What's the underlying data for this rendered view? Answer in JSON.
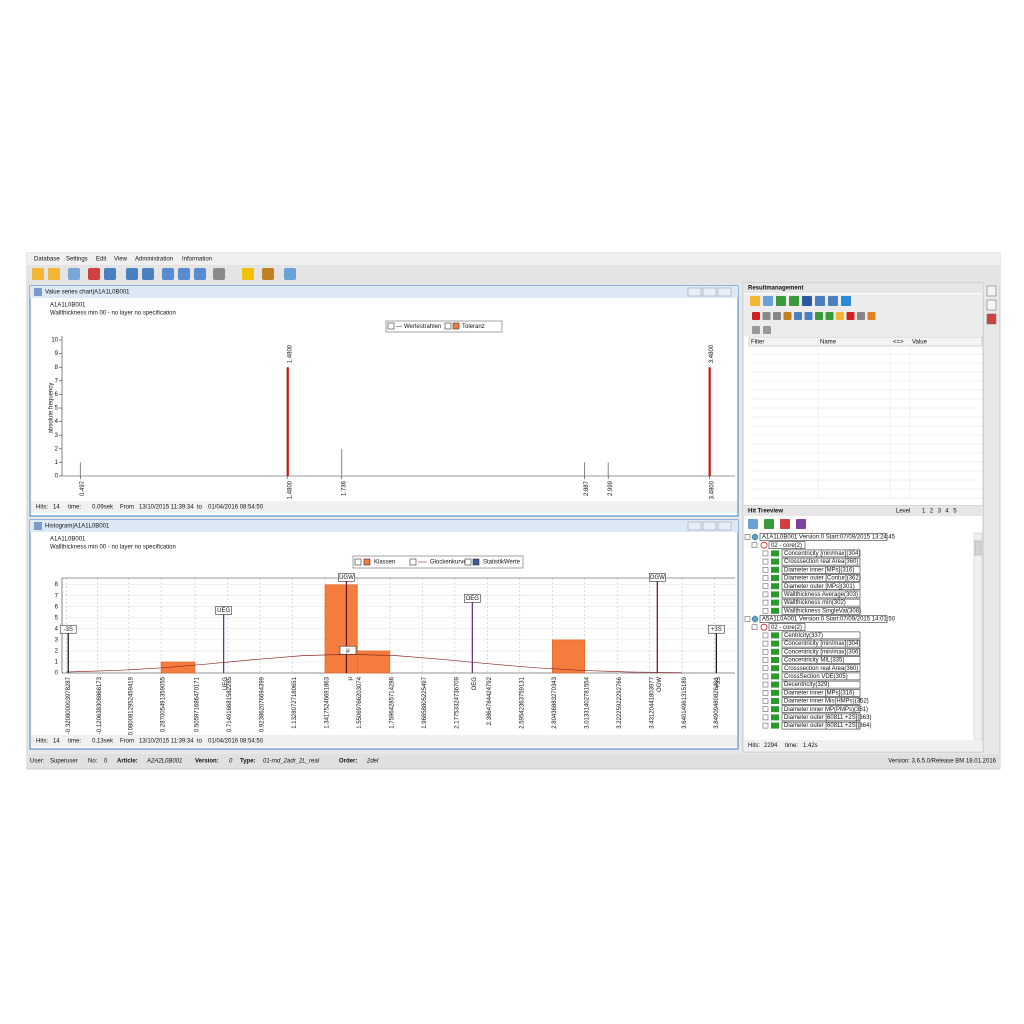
{
  "menu": [
    "Database",
    "Settings",
    "Edit",
    "View",
    "Administration",
    "Information"
  ],
  "value_chart": {
    "window_title": "Value series chart|A1A1L0B001",
    "header": "A1A1L0B001",
    "subtitle": "Wallthickness min 00 - no layer no specification",
    "legend": [
      "Wertestrahlen",
      "Toleranz"
    ],
    "y_label": "absolute frequency",
    "ylim": [
      0,
      10
    ],
    "yticks": [
      0,
      1,
      2,
      3,
      4,
      5,
      6,
      7,
      8,
      9,
      10
    ],
    "xlim": [
      0.41,
      3.6
    ],
    "xticks": [
      0.497,
      {
        "value": 1.48,
        "label": "1.4800"
      },
      1.736,
      2.887,
      2.999,
      {
        "value": 3.48,
        "label": "3.4800"
      }
    ],
    "series": [
      {
        "name": "Wertestrahlen",
        "color": "#777777",
        "x": [
          0.497,
          1.736,
          2.887,
          2.999
        ],
        "values": [
          1,
          2,
          1,
          1
        ]
      },
      {
        "name": "Toleranz",
        "color": "#cc1111",
        "x": [
          1.48,
          3.48
        ],
        "values": [
          8,
          8
        ],
        "value_labels": [
          "1.4800",
          "3.4800"
        ]
      }
    ],
    "status": {
      "hits_label": "Hits:",
      "hits": 14,
      "time_label": "time:",
      "time": "0.09sek",
      "from_label": "From",
      "from": "13/10/2015 11:39:34",
      "to_label": "to",
      "to": "01/04/2016 08:54:50"
    }
  },
  "histogram": {
    "window_title": "Histogram|A1A1L0B001",
    "header": "A1A1L0B001",
    "subtitle": "Wallthickness min 00 - no layer no specification",
    "legend": [
      "Klassen",
      "Glockenkurve",
      "StatistikWerte"
    ],
    "color": "#f47c3c",
    "ylim": [
      0,
      8.6
    ],
    "yticks": [
      0,
      1,
      2,
      3,
      4,
      5,
      6,
      7,
      8
    ],
    "xlim": [
      -0.35,
      3.98
    ],
    "bins": [
      -0.320800003978287,
      -0.120638308866173,
      0.0800812952459419,
      0.287005491359055,
      0.505971686470171,
      0.714916681582285,
      0.923862076694399,
      1.13280727180651,
      1.34175246691863,
      1.55069766203074,
      1.75964285714286,
      1.96858805225497,
      2.17753324736709,
      2.3864784424792,
      2.59542363759131,
      2.80436883270343,
      3.01331402781554,
      3.22225922292766,
      3.43120441803977,
      3.64014961315189,
      3.84909480826401
    ],
    "counts": [
      0,
      0,
      0,
      1,
      0,
      0,
      0,
      0,
      8,
      2,
      0,
      0,
      0,
      0,
      0,
      3,
      0,
      0,
      0,
      0
    ],
    "curve": {
      "x": [
        -0.32,
        0,
        0.3,
        0.6,
        0.9,
        1.2,
        1.5,
        1.8,
        2.1,
        2.4,
        2.7,
        3.0,
        3.3,
        3.64
      ],
      "values": [
        0.09,
        0.23,
        0.47,
        0.83,
        1.23,
        1.57,
        1.7,
        1.57,
        1.23,
        0.83,
        0.47,
        0.23,
        0.09,
        0.03
      ]
    },
    "markers": [
      {
        "label": "-3S",
        "value": -0.31
      },
      {
        "label": "UEG",
        "value": 0.69
      },
      {
        "label": "UGW",
        "value": 1.48
      },
      {
        "label": "μ",
        "value": 1.49
      },
      {
        "label": "OEG",
        "value": 2.29
      },
      {
        "label": "OGW",
        "value": 3.48
      },
      {
        "label": "+3S",
        "value": 3.86
      }
    ],
    "status": {
      "hits_label": "Hits:",
      "hits": 14,
      "time_label": "time:",
      "time": "0.13sek",
      "from_label": "From",
      "from": "13/10/2015 11:39:34",
      "to_label": "to",
      "to": "01/04/2016 08:54:50"
    }
  },
  "result_management": {
    "title": "Resultmanagement",
    "columns": [
      "Filter",
      "Name",
      "<=>",
      "Value"
    ]
  },
  "tree_view": {
    "title": "Hit Treeview",
    "level_label": "Level",
    "levels": [
      1,
      2,
      3,
      4,
      5
    ],
    "roots": [
      {
        "root": "A1A1L0B001 Version:0 Start:07/09/2015 13:24:45",
        "group": "02 - core(2)",
        "items": [
          "Concentricity [min/max](304)",
          "Crosssection real Area(360)",
          "Diameter inner [MPs](316)",
          "Diameter outer [Contur](362)",
          "Diameter outer [MPs](301)",
          "Wallthickness Average(303)",
          "Wallthickness min(302)",
          "Wallthickness SingleVal(308)"
        ]
      },
      {
        "root": "A5A1L0A001 Version:0 Start:07/09/2015 14:01:50",
        "group": "02 - core(2)",
        "items": [
          "Centricity(337)",
          "Concentricity [min/max](304)",
          "Concentricity [min/max](306)",
          "Concentricity MIL(335)",
          "Crosssection real Area(360)",
          "CrossSection VDE(305)",
          "Decentricity(329)",
          "Diameter inner [MPs](316)",
          "Diameter inner Mis(HMPs)(352)",
          "Diameter inner MP(PMPs)(351)",
          "Diameter outer [60811 +2S](363)",
          "Diameter outer [60811 +2S](364)"
        ]
      }
    ],
    "status": {
      "hits_label": "Hits:",
      "hits": 2294,
      "time_label": "time:",
      "time": "1.42s"
    }
  },
  "status_bar": {
    "user_label": "User:",
    "user": "Superuser",
    "no_label": "No:",
    "no": 0,
    "article_label": "Article:",
    "article": "A2A2L0B001",
    "version_label": "Version:",
    "version": 0,
    "type_label": "Type:",
    "type": "01-rnd_2adr_2L_real",
    "order_label": "Order:",
    "order": "2del",
    "release": "Version: 3.6.5.0/Release BM 18.01.2016"
  }
}
